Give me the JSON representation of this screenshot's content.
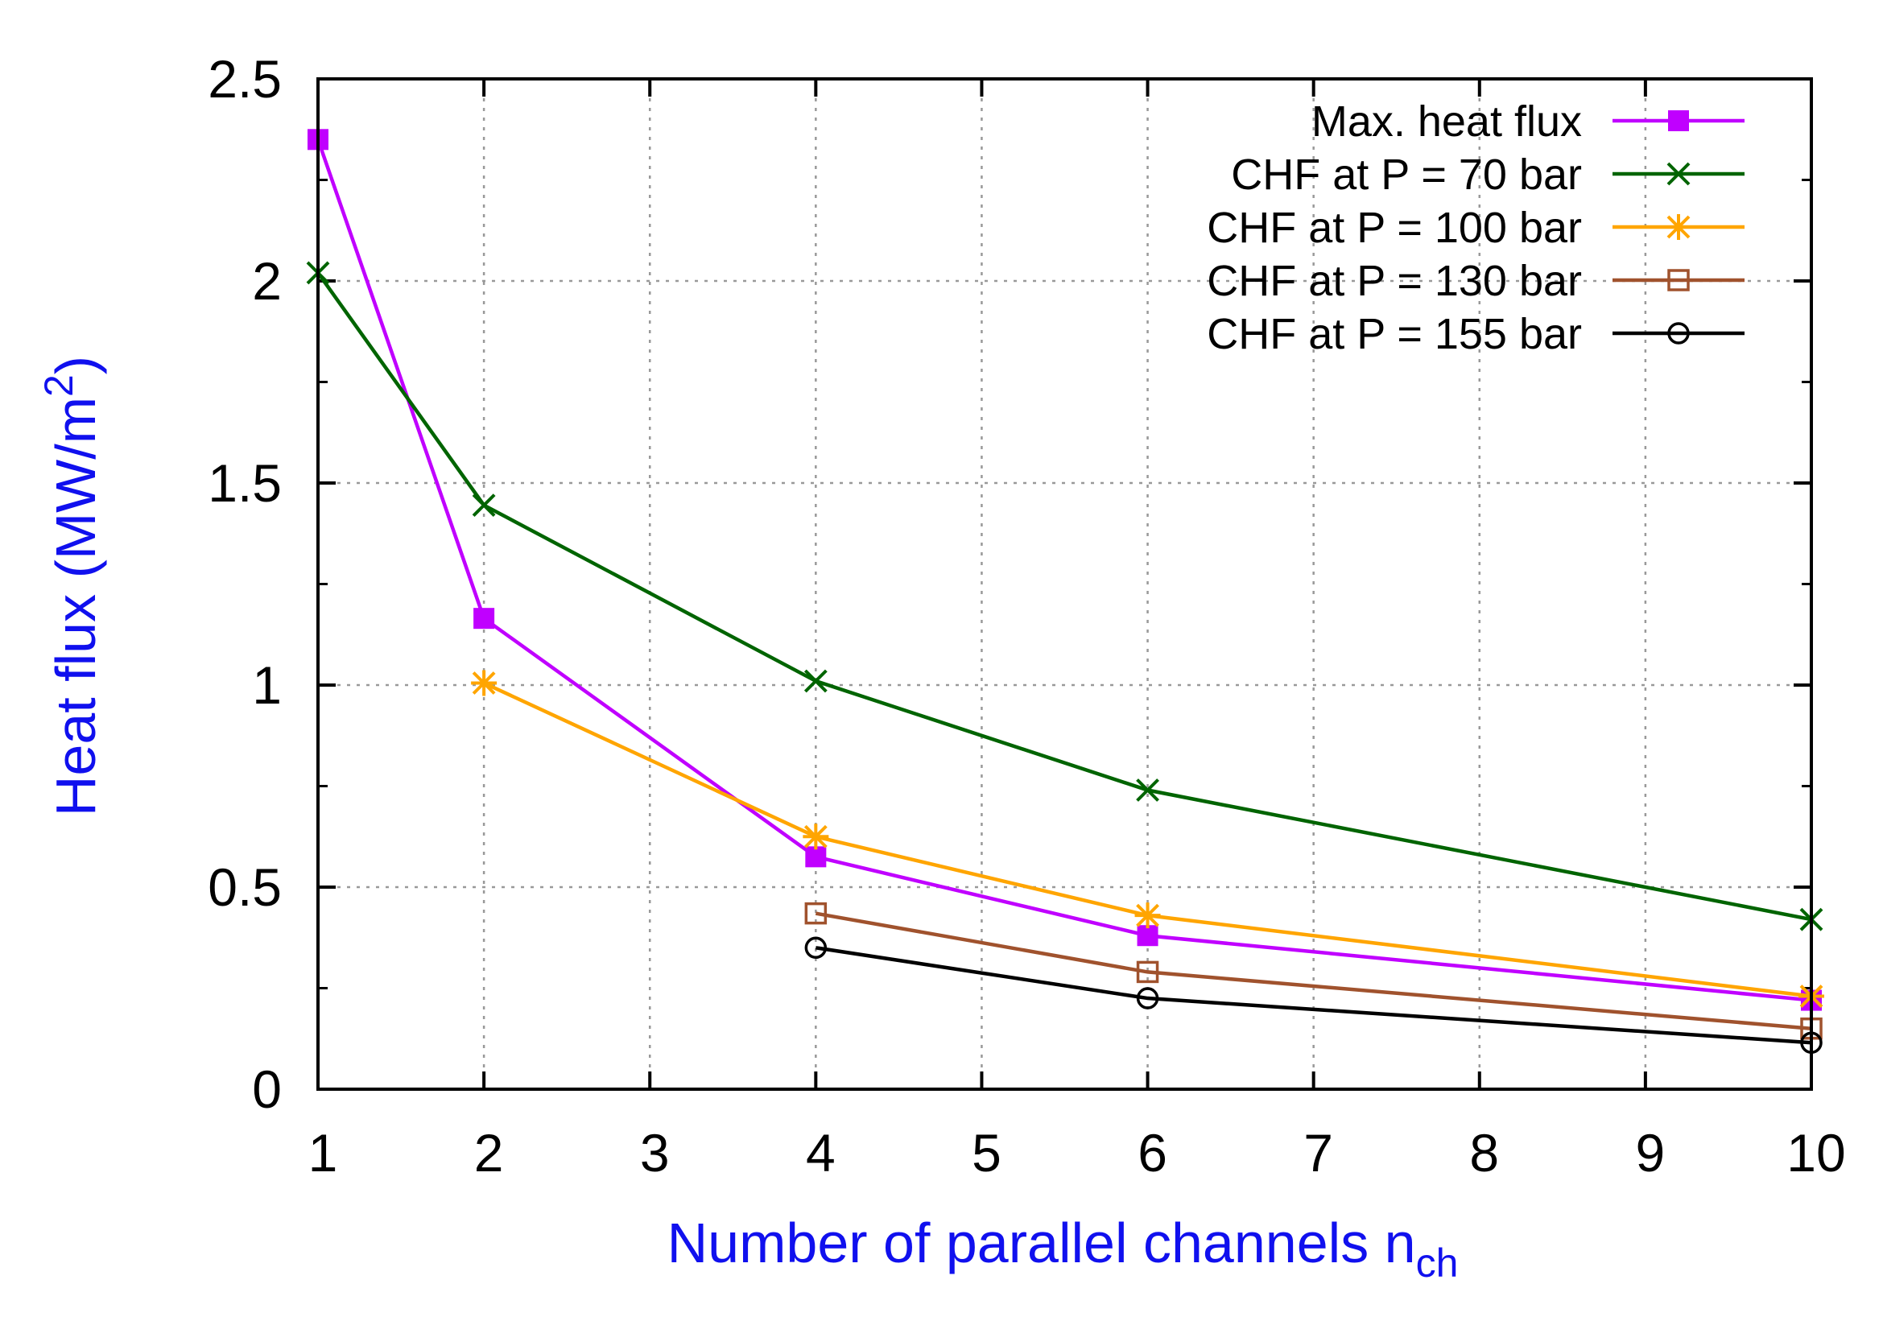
{
  "chart_data": {
    "type": "line",
    "title": "",
    "xlabel": "Number of parallel channels n",
    "xlabel_subscript": "ch",
    "ylabel": "Heat flux (MW/m",
    "ylabel_superscript": "2",
    "ylabel_close": ")",
    "xlim": [
      1,
      10
    ],
    "ylim": [
      0,
      2.5
    ],
    "xticks": [
      1,
      2,
      3,
      4,
      5,
      6,
      7,
      8,
      9,
      10
    ],
    "yticks": [
      0,
      0.5,
      1,
      1.5,
      2,
      2.5
    ],
    "ytick_labels": [
      "0",
      "0.5",
      "1",
      "1.5",
      "2",
      "2.5"
    ],
    "grid": true,
    "legend_position": "top-right",
    "axis_label_color": "#1010ee",
    "series": [
      {
        "name": "Max. heat flux",
        "color": "#c000ff",
        "marker": "filled-square",
        "x": [
          1,
          2,
          4,
          6,
          10
        ],
        "y": [
          2.35,
          1.165,
          0.575,
          0.38,
          0.22
        ]
      },
      {
        "name": "CHF at P = 70 bar",
        "color": "#006400",
        "marker": "cross",
        "x": [
          1,
          2,
          4,
          6,
          10
        ],
        "y": [
          2.02,
          1.445,
          1.01,
          0.74,
          0.42
        ]
      },
      {
        "name": "CHF at P = 100 bar",
        "color": "#ffa500",
        "marker": "asterisk",
        "x": [
          2,
          4,
          6,
          10
        ],
        "y": [
          1.005,
          0.625,
          0.43,
          0.23
        ]
      },
      {
        "name": "CHF at P = 130 bar",
        "color": "#a0522d",
        "marker": "open-square",
        "x": [
          4,
          6,
          10
        ],
        "y": [
          0.435,
          0.29,
          0.15
        ]
      },
      {
        "name": "CHF at P = 155 bar",
        "color": "#000000",
        "marker": "open-circle",
        "x": [
          4,
          6,
          10
        ],
        "y": [
          0.35,
          0.225,
          0.115
        ]
      }
    ]
  }
}
